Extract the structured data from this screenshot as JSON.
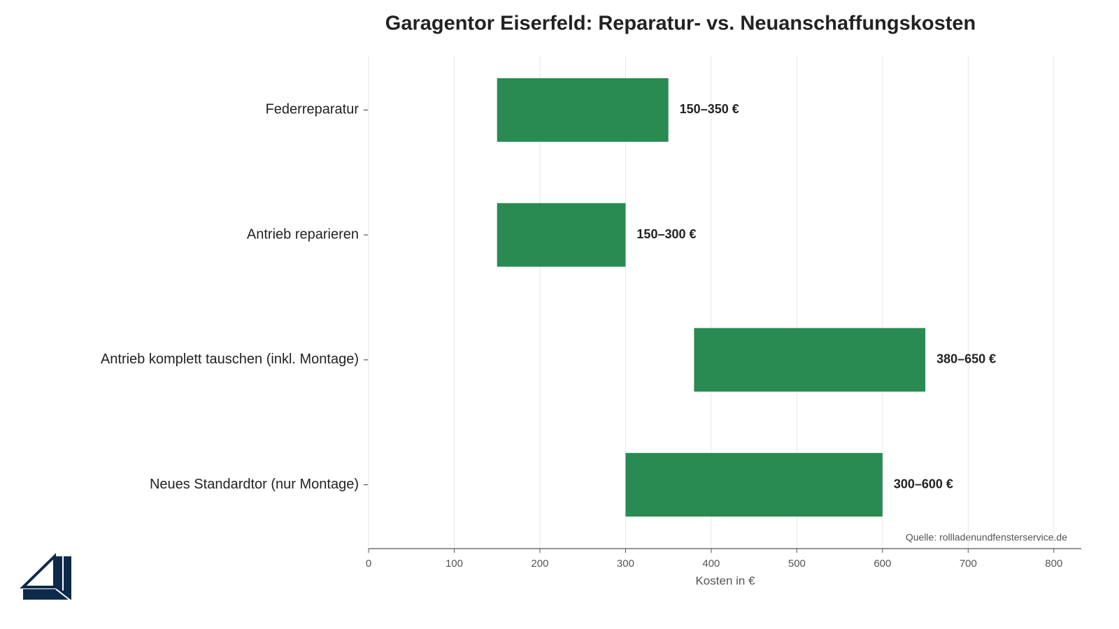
{
  "chart_data": {
    "type": "floating_bar",
    "title": "Garagentor Eiserfeld: Reparatur- vs. Neuanschaffungskosten",
    "categories": [
      "Federreparatur",
      "Antrieb reparieren",
      "Antrieb komplett tauschen (inkl. Montage)",
      "Neues Standardtor (nur Montage)"
    ],
    "low": [
      150,
      150,
      380,
      300
    ],
    "high": [
      350,
      300,
      650,
      600
    ],
    "value_labels": [
      "150–350 €",
      "150–300 €",
      "380–650 €",
      "300–600 €"
    ],
    "color": "#1e8449",
    "xlabel": "Kosten in €",
    "xlim": [
      0,
      832
    ],
    "xticks": [
      0,
      100,
      200,
      300,
      400,
      500,
      600,
      700,
      800
    ],
    "grid": true,
    "annotation": "Quelle: rollladenundfensterservice.de"
  }
}
